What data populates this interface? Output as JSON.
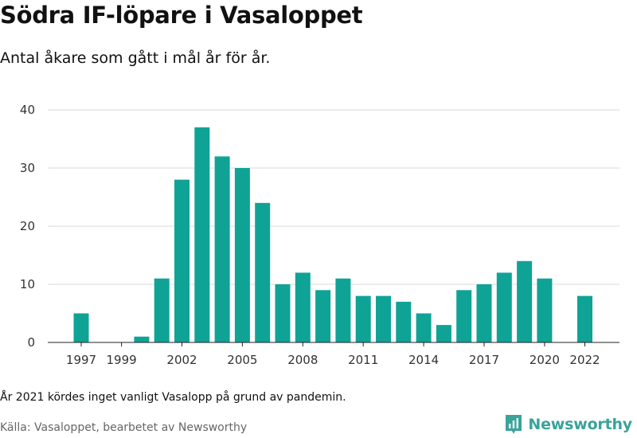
{
  "title": "Södra IF-löpare i Vasaloppet",
  "subtitle": "Antal åkare som gått i mål år för år.",
  "note": "År 2021 kördes inget vanligt Vasalopp på grund av pandemin.",
  "source": "Källa: Vasaloppet, bearbetet av Newsworthy",
  "brand": {
    "name": "Newsworthy",
    "color": "#3aa39a"
  },
  "chart_data": {
    "type": "bar",
    "title": "Södra IF-löpare i Vasaloppet",
    "subtitle": "Antal åkare som gått i mål år för år.",
    "xlabel": "",
    "ylabel": "",
    "ylim": [
      0,
      40
    ],
    "yticks": [
      0,
      10,
      20,
      30,
      40
    ],
    "xtick_labels": [
      "1997",
      "1999",
      "2002",
      "2005",
      "2008",
      "2011",
      "2014",
      "2017",
      "2020",
      "2022"
    ],
    "grid": true,
    "bar_color": "#0fa396",
    "categories": [
      "1997",
      "1998",
      "1999",
      "2000",
      "2001",
      "2002",
      "2003",
      "2004",
      "2005",
      "2006",
      "2007",
      "2008",
      "2009",
      "2010",
      "2011",
      "2012",
      "2013",
      "2014",
      "2015",
      "2016",
      "2017",
      "2018",
      "2019",
      "2020",
      "2021",
      "2022"
    ],
    "values": [
      5,
      0,
      0,
      1,
      11,
      28,
      37,
      32,
      30,
      24,
      10,
      12,
      9,
      11,
      8,
      8,
      7,
      5,
      3,
      9,
      10,
      12,
      14,
      11,
      0,
      8
    ]
  }
}
